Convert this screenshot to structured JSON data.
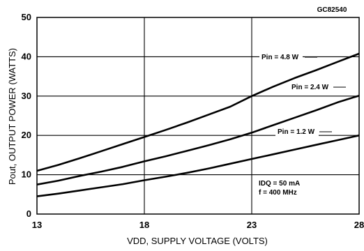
{
  "figure_id": "GC82540",
  "chart_data": {
    "type": "line",
    "xlabel": "VDD, SUPPLY VOLTAGE (VOLTS)",
    "ylabel": "Pout, OUTPUT POWER (WATTS)",
    "xlim": [
      13,
      28
    ],
    "ylim": [
      0,
      50
    ],
    "xticks": [
      13,
      18,
      23,
      28
    ],
    "yticks": [
      0,
      10,
      20,
      30,
      40,
      50
    ],
    "grid": true,
    "series": [
      {
        "name": "Pin = 4.8 W",
        "x": [
          13,
          14,
          15,
          16,
          17,
          18,
          19,
          20,
          21,
          22,
          23,
          24,
          25,
          26,
          27,
          28
        ],
        "y": [
          11,
          12.5,
          14.2,
          16,
          17.8,
          19.6,
          21.4,
          23.3,
          25.3,
          27.3,
          30,
          32.4,
          34.6,
          36.6,
          38.7,
          40.8
        ]
      },
      {
        "name": "Pin = 2.4 W",
        "x": [
          13,
          14,
          15,
          16,
          17,
          18,
          19,
          20,
          21,
          22,
          23,
          24,
          25,
          26,
          27,
          28
        ],
        "y": [
          7.5,
          8.5,
          9.7,
          10.8,
          12,
          13.4,
          14.7,
          16.1,
          17.5,
          19,
          20.7,
          22.6,
          24.5,
          26.4,
          28.4,
          30.1
        ]
      },
      {
        "name": "Pin = 1.2 W",
        "x": [
          13,
          14,
          15,
          16,
          17,
          18,
          19,
          20,
          21,
          22,
          23,
          24,
          25,
          26,
          27,
          28
        ],
        "y": [
          4.5,
          5.2,
          6,
          6.8,
          7.6,
          8.6,
          9.5,
          10.5,
          11.6,
          12.8,
          14,
          15.2,
          16.4,
          17.6,
          18.8,
          20
        ]
      }
    ],
    "annotations": [
      "IDQ = 50 mA",
      "f = 400 MHz"
    ]
  }
}
